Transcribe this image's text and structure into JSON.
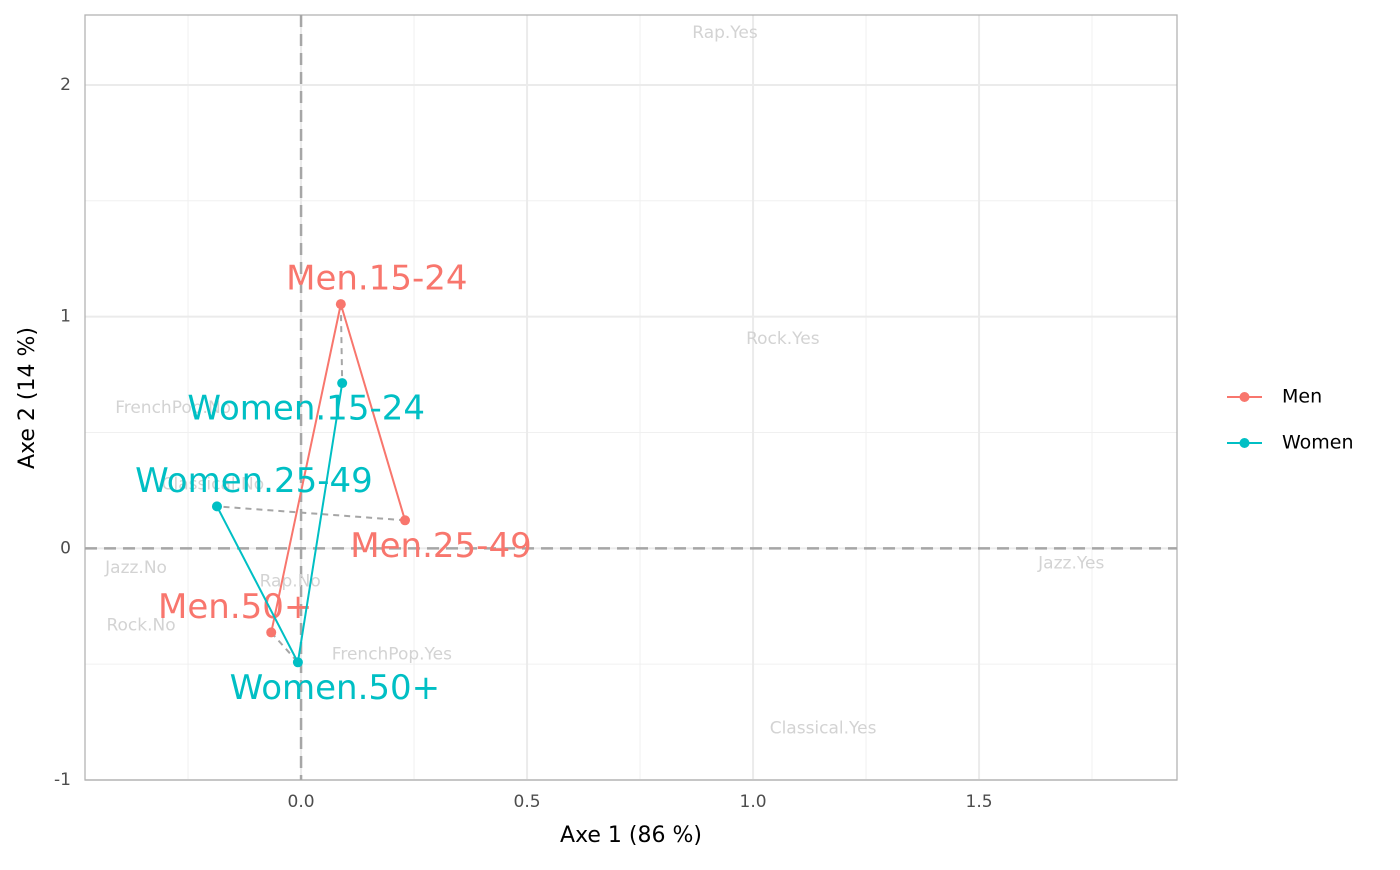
{
  "chart_data": {
    "type": "scatter",
    "xlabel": "Axe 1 (86 %)",
    "ylabel": "Axe 2 (14 %)",
    "xlim": [
      -0.478,
      1.938
    ],
    "ylim": [
      -1,
      2.302
    ],
    "xticks": [
      {
        "value": 0,
        "label": "0.0"
      },
      {
        "value": 0.5,
        "label": "0.5"
      },
      {
        "value": 1,
        "label": "1.0"
      },
      {
        "value": 1.5,
        "label": "1.5"
      }
    ],
    "yticks": [
      -1,
      0,
      1,
      2
    ],
    "minor_xticks": [
      -0.25,
      0.25,
      0.75,
      1.25,
      1.75
    ],
    "minor_yticks": [
      -0.5,
      0.5,
      1.5
    ],
    "grid": true,
    "reference_lines": {
      "x": 0,
      "y": 0
    },
    "legend": "right",
    "series": [
      {
        "name": "Men",
        "color": "#F8766D",
        "labels": [
          "Men.25-49",
          "Men.15-24",
          "Men.50+"
        ],
        "x": [
          0.23,
          0.088,
          -0.066
        ],
        "values": [
          0.121,
          1.054,
          -0.363
        ]
      },
      {
        "name": "Women",
        "color": "#00BFC4",
        "labels": [
          "Women.25-49",
          "Women.50+",
          "Women.15-24"
        ],
        "x": [
          -0.186,
          -0.007,
          0.091
        ],
        "values": [
          0.181,
          -0.492,
          0.713
        ]
      }
    ],
    "column_points": {
      "color": "#d3d3d3",
      "labels": [
        "Rap.Yes",
        "Rock.Yes",
        "FrenchPop.No",
        "Classical.No",
        "Jazz.No",
        "Rap.No",
        "Rock.No",
        "FrenchPop.Yes",
        "Jazz.Yes",
        "Classical.Yes"
      ],
      "x": [
        0.938,
        1.066,
        -0.283,
        -0.195,
        -0.365,
        -0.024,
        -0.354,
        0.201,
        1.704,
        1.155
      ],
      "values": [
        2.225,
        0.903,
        0.605,
        0.276,
        -0.086,
        -0.143,
        -0.333,
        -0.458,
        -0.065,
        -0.778
      ]
    }
  }
}
